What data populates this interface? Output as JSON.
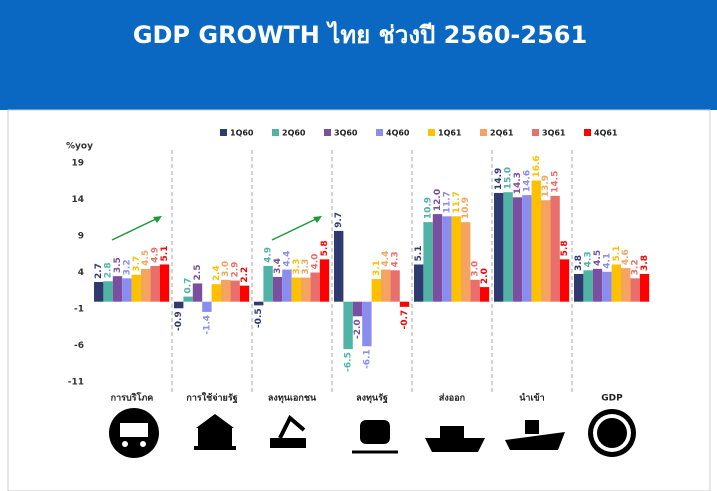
{
  "chart_data": {
    "type": "bar",
    "title": "GDP GROWTH ไทย ช่วงปี 2560-2561",
    "ylabel": "%yoy",
    "categories": [
      "การบริโภค",
      "การใช้จ่ายรัฐ",
      "ลงทุนเอกชน",
      "ลงทุนรัฐ",
      "ส่งออก",
      "นำเข้า",
      "GDP"
    ],
    "ylim": [
      -11,
      19
    ],
    "yticks": [
      19,
      14,
      9,
      4,
      -1,
      -6,
      -11
    ],
    "legend": "top",
    "series": [
      {
        "name": "1Q60",
        "color": "#2f3b6f",
        "values": [
          2.7,
          -0.9,
          -0.5,
          9.7,
          5.1,
          14.9,
          3.8
        ],
        "value_labels": [
          "2.7",
          "-0.9",
          "-0.5",
          "9.7",
          "5.1",
          "14.9",
          "3.8"
        ]
      },
      {
        "name": "2Q60",
        "color": "#4fb3a5",
        "values": [
          2.8,
          0.7,
          4.9,
          -6.5,
          10.9,
          15.0,
          4.3
        ],
        "value_labels": [
          "2.8",
          "0.7",
          "4.9",
          "-6.5",
          "10.9",
          "15.0",
          "4.3"
        ]
      },
      {
        "name": "3Q60",
        "color": "#7b4fa0",
        "values": [
          3.5,
          2.5,
          3.4,
          -2.0,
          12.0,
          14.3,
          4.5
        ],
        "value_labels": [
          "3.5",
          "2.5",
          "3.4",
          "-2.0",
          "12.0",
          "14.3",
          "4.5"
        ]
      },
      {
        "name": "4Q60",
        "color": "#8b8cf0",
        "values": [
          3.2,
          -1.4,
          4.4,
          -6.1,
          11.7,
          14.6,
          4.1
        ],
        "value_labels": [
          "3.2",
          "-1.4",
          "4.4",
          "-6.1",
          "11.7",
          "14.6",
          "4.1"
        ]
      },
      {
        "name": "1Q61",
        "color": "#ffc000",
        "values": [
          3.7,
          2.4,
          3.3,
          3.1,
          11.7,
          16.6,
          5.1
        ],
        "value_labels": [
          "3.7",
          "2.4",
          "3.3",
          "3.1",
          "11.7",
          "16.6",
          "5.1"
        ]
      },
      {
        "name": "2Q61",
        "color": "#f4a460",
        "values": [
          4.5,
          3.0,
          3.3,
          4.4,
          10.9,
          13.9,
          4.6
        ],
        "value_labels": [
          "4.5",
          "3.0",
          "3.3",
          "4.4",
          "10.9",
          "13.9",
          "4.6"
        ]
      },
      {
        "name": "3Q61",
        "color": "#e8706a",
        "values": [
          4.9,
          2.9,
          4.0,
          4.3,
          3.0,
          14.5,
          3.2
        ],
        "value_labels": [
          "4.9",
          "2.9",
          "4.0",
          "4.3",
          "3.0",
          "14.5",
          "3.2"
        ]
      },
      {
        "name": "4Q61",
        "color": "#ff0000",
        "values": [
          5.1,
          2.2,
          5.8,
          -0.7,
          2.0,
          5.8,
          3.8
        ],
        "value_labels": [
          "5.1",
          "2.2",
          "5.8",
          "-0.7",
          "2.0",
          "5.8",
          "3.8"
        ]
      }
    ]
  }
}
